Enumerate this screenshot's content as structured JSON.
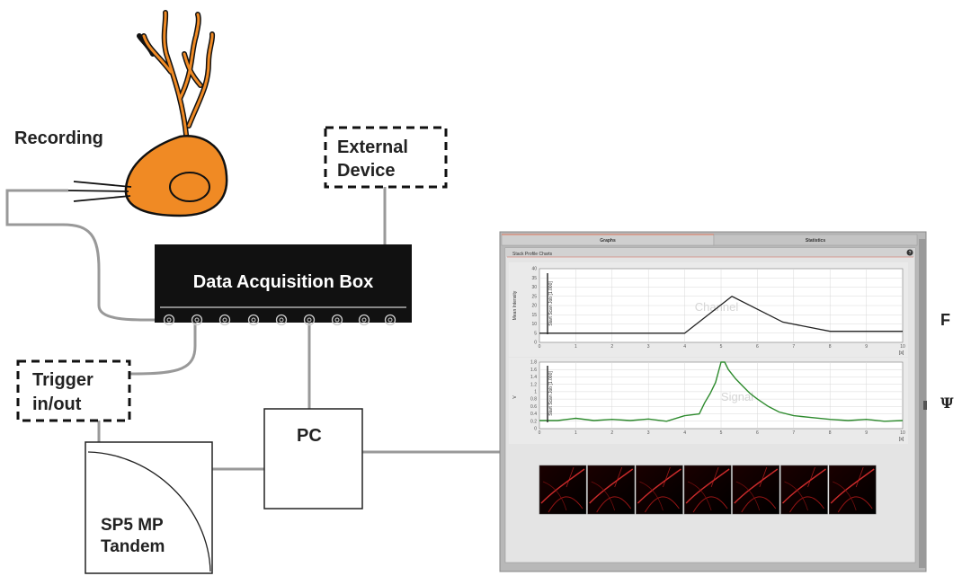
{
  "labels": {
    "recording": "Recording",
    "external_device_line1": "External",
    "external_device_line2": "Device",
    "data_acquisition_box": "Data Acquisition Box",
    "trigger_line1": "Trigger",
    "trigger_line2": "in/out",
    "pc": "PC",
    "sp5_line1": "SP5 MP",
    "sp5_line2": "Tandem",
    "side_f": "F",
    "side_psi": "Ψ"
  },
  "software": {
    "tabs": [
      "Graphs",
      "Statistics"
    ],
    "panel_title": "Stack Profile Charts",
    "help_icon": "help-icon",
    "chart1": {
      "ylabel": "Mean Intensity",
      "legend": "Start Scan Job [1.000]",
      "watermark": "Channel",
      "x_unit": "[s]"
    },
    "chart2": {
      "ylabel": "V",
      "legend": "Start Scan Job [1.000]",
      "watermark": "Signal",
      "x_unit": "[s]"
    },
    "thumbnail_count": 7
  },
  "colors": {
    "neuron_fill": "#f08a24",
    "box_fill": "#111111",
    "trace_mean": "#222222",
    "trace_signal": "#2e8b2e"
  },
  "chart_data": [
    {
      "type": "line",
      "x": [
        0,
        4,
        5.3,
        6.7,
        8,
        10
      ],
      "values": [
        5,
        5,
        25,
        11,
        6,
        6
      ],
      "ylim": [
        0,
        40
      ],
      "xlim": [
        0,
        10
      ],
      "yticks": [
        "40",
        "35",
        "30",
        "25",
        "20",
        "15",
        "10",
        "5",
        "0"
      ],
      "xticks": [
        "0",
        "1",
        "2",
        "3",
        "4",
        "5",
        "6",
        "7",
        "8",
        "9",
        "10"
      ],
      "xlabel": "[s]",
      "ylabel": "Mean Intensity",
      "grid": true
    },
    {
      "type": "line",
      "x": [
        0,
        0.5,
        1,
        1.5,
        2,
        2.5,
        3,
        3.5,
        4,
        4.4,
        4.55,
        4.7,
        4.85,
        5,
        5.1,
        5.2,
        5.4,
        5.6,
        5.8,
        6,
        6.3,
        6.6,
        7,
        7.5,
        8,
        8.5,
        9,
        9.5,
        10
      ],
      "values": [
        0.22,
        0.22,
        0.28,
        0.22,
        0.25,
        0.22,
        0.26,
        0.2,
        0.35,
        0.4,
        0.7,
        0.95,
        1.25,
        1.8,
        1.8,
        1.6,
        1.35,
        1.15,
        0.95,
        0.8,
        0.6,
        0.45,
        0.35,
        0.3,
        0.25,
        0.22,
        0.25,
        0.2,
        0.22
      ],
      "ylim": [
        0,
        1.8
      ],
      "xlim": [
        0,
        10
      ],
      "yticks": [
        "1.8",
        "1.6",
        "1.4",
        "1.2",
        "1",
        "0.8",
        "0.6",
        "0.4",
        "0.2",
        "0"
      ],
      "xticks": [
        "0",
        "1",
        "2",
        "3",
        "4",
        "5",
        "6",
        "7",
        "8",
        "9",
        "10"
      ],
      "xlabel": "[s]",
      "ylabel": "V",
      "grid": true
    }
  ]
}
